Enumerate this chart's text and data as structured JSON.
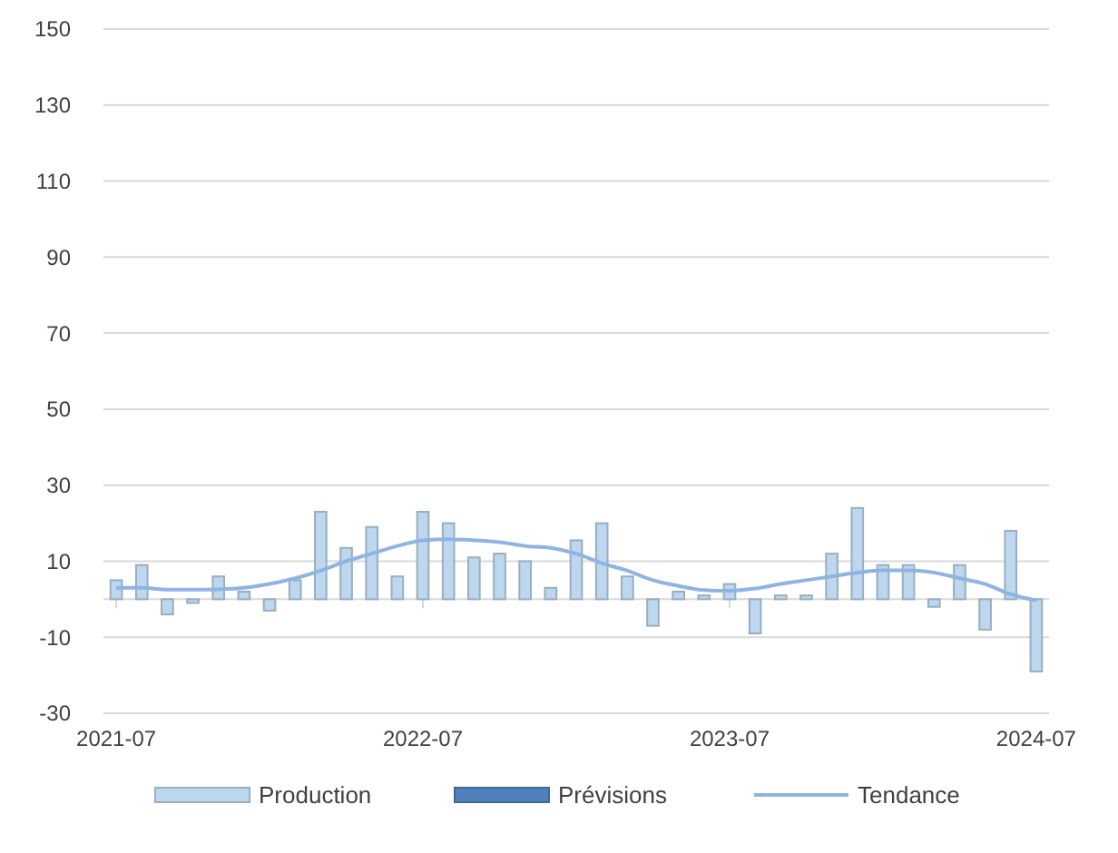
{
  "chart_data": {
    "type": "bar",
    "categories": [
      "2021-07",
      null,
      null,
      null,
      null,
      null,
      null,
      null,
      null,
      null,
      null,
      null,
      "2022-07",
      null,
      null,
      null,
      null,
      null,
      null,
      null,
      null,
      null,
      null,
      null,
      "2023-07",
      null,
      null,
      null,
      null,
      null,
      null,
      null,
      null,
      null,
      null,
      null,
      "2024-07"
    ],
    "series": [
      {
        "name": "Production",
        "color": "#bdd7ee",
        "values": [
          5,
          9,
          -4,
          -1,
          6,
          2,
          -3,
          5,
          23,
          13.5,
          19,
          6,
          23,
          20,
          11,
          12,
          10,
          3,
          15.5,
          20,
          6,
          -7,
          2,
          1,
          4,
          -9,
          1,
          1,
          12,
          24,
          9,
          9,
          -2,
          9,
          -8,
          18,
          -19
        ]
      },
      {
        "name": "Prévisions",
        "color": "#4f81bd",
        "values": [
          null,
          null,
          null,
          null,
          null,
          null,
          null,
          null,
          null,
          null,
          null,
          null,
          null,
          null,
          null,
          null,
          null,
          null,
          null,
          null,
          null,
          null,
          null,
          null,
          null,
          null,
          null,
          null,
          null,
          null,
          null,
          null,
          null,
          null,
          null,
          null,
          null
        ]
      },
      {
        "name": "Tendance",
        "type": "line",
        "color": "#8eb4e3",
        "values": [
          3,
          3,
          2.5,
          2.5,
          2.6,
          3,
          4,
          5.5,
          7.5,
          10,
          12,
          14,
          15.5,
          15.8,
          15.5,
          15,
          14,
          13.5,
          12,
          9.5,
          7.5,
          5,
          3.5,
          2.4,
          2.2,
          2.8,
          4,
          5,
          6,
          7,
          7.6,
          7.6,
          7,
          5.5,
          4,
          1.3,
          -0.3
        ]
      }
    ],
    "ylim": [
      -30,
      150
    ],
    "yticks": [
      -30,
      -10,
      10,
      30,
      50,
      70,
      90,
      110,
      130,
      150
    ],
    "grid": "y",
    "legend": "bottom"
  }
}
